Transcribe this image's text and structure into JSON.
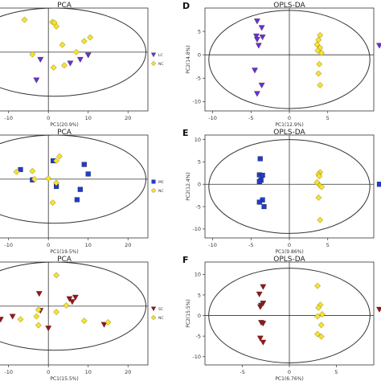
{
  "panels": [
    {
      "id": "A",
      "letter": "",
      "title": "PCA",
      "xlabel": "PC1(20.9%)",
      "ylabel": "",
      "xlim": [
        -17,
        25
      ],
      "ylim": [
        -8,
        6
      ],
      "xticks": [
        -10,
        0,
        10,
        20
      ],
      "yticks": [],
      "ellipse": {
        "cx": 1.5,
        "cy": 0,
        "rx": 23,
        "ry": 6
      },
      "legend": [
        {
          "label": "LC",
          "shape": "tri",
          "color": "#6a2fd6"
        },
        {
          "label": "NC",
          "shape": "dia",
          "color": "#f5e232"
        }
      ],
      "series": [
        {
          "name": "LC",
          "shape": "tri",
          "color": "#6a2fd6",
          "points": [
            [
              -16,
              2
            ],
            [
              -14,
              -2
            ],
            [
              -3,
              -3.8
            ],
            [
              5.5,
              -1.5
            ],
            [
              8,
              -1
            ],
            [
              10,
              -0.4
            ],
            [
              -2,
              -1
            ]
          ]
        },
        {
          "name": "NC",
          "shape": "dia",
          "color": "#f5e232",
          "points": [
            [
              -6,
              4.4
            ],
            [
              1,
              4.1
            ],
            [
              1.5,
              4
            ],
            [
              2,
              3.5
            ],
            [
              3.5,
              1
            ],
            [
              7,
              0
            ],
            [
              9,
              1.5
            ],
            [
              10.5,
              2
            ],
            [
              -4,
              -0.3
            ],
            [
              1.3,
              -2.1
            ],
            [
              4,
              -1.8
            ]
          ]
        }
      ]
    },
    {
      "id": "D",
      "letter": "D",
      "title": "OPLS-DA",
      "xlabel": "PC1(12.9%)",
      "ylabel": "PC2(14.8%)",
      "xlim": [
        -11,
        11
      ],
      "ylim": [
        -12,
        10
      ],
      "xticks": [
        -10,
        -5,
        0,
        5
      ],
      "yticks": [
        -10,
        -5,
        0,
        5
      ],
      "ellipse": {
        "cx": 0,
        "cy": -1,
        "rx": 10.5,
        "ry": 10.5
      },
      "legend": [],
      "series": [
        {
          "name": "LC",
          "shape": "tri",
          "color": "#6a2fd6",
          "points": [
            [
              -4.2,
              7.2
            ],
            [
              -3.6,
              5.8
            ],
            [
              -4.3,
              4
            ],
            [
              -3.5,
              3.8
            ],
            [
              -4.2,
              3.3
            ],
            [
              -4,
              2
            ],
            [
              -4.5,
              -3.3
            ],
            [
              -3.6,
              -6.5
            ],
            [
              -4.2,
              -8.3
            ]
          ]
        },
        {
          "name": "NC",
          "shape": "dia",
          "color": "#f5e232",
          "points": [
            [
              4,
              4.2
            ],
            [
              3.8,
              3.2
            ],
            [
              3.6,
              2.2
            ],
            [
              4,
              1.5
            ],
            [
              3.7,
              0.9
            ],
            [
              4.2,
              0.4
            ],
            [
              3.9,
              -2
            ],
            [
              3.8,
              -4
            ],
            [
              4,
              -6.5
            ]
          ]
        }
      ],
      "edge_markers": [
        {
          "y": 2,
          "shape": "tri",
          "color": "#6a2fd6"
        }
      ]
    },
    {
      "id": "B",
      "letter": "",
      "title": "PCA",
      "xlabel": "PC1(19.5%)",
      "ylabel": "",
      "xlim": [
        -17,
        25
      ],
      "ylim": [
        -8,
        6
      ],
      "xticks": [
        -10,
        0,
        10,
        20
      ],
      "yticks": [],
      "ellipse": {
        "cx": 1.5,
        "cy": 0,
        "rx": 23,
        "ry": 6
      },
      "legend": [
        {
          "label": "MC",
          "shape": "sq",
          "color": "#1f3bd1"
        },
        {
          "label": "NC",
          "shape": "dia",
          "color": "#f5e232"
        }
      ],
      "series": [
        {
          "name": "MC",
          "shape": "sq",
          "color": "#1f3bd1",
          "points": [
            [
              -7,
              1.3
            ],
            [
              -4,
              -0.1
            ],
            [
              1.2,
              2.5
            ],
            [
              2,
              -1
            ],
            [
              9,
              2
            ],
            [
              10,
              0.7
            ],
            [
              8,
              -1.4
            ],
            [
              7.2,
              -2.8
            ],
            [
              -14.5,
              -3.3
            ]
          ]
        },
        {
          "name": "NC",
          "shape": "dia",
          "color": "#f5e232",
          "points": [
            [
              -14,
              1
            ],
            [
              -8,
              1
            ],
            [
              -4,
              1.1
            ],
            [
              2,
              2.5
            ],
            [
              2.8,
              3.1
            ],
            [
              0,
              0.1
            ],
            [
              2,
              -0.5
            ],
            [
              1.1,
              -3.2
            ],
            [
              -3.5,
              0
            ]
          ]
        }
      ]
    },
    {
      "id": "E",
      "letter": "E",
      "title": "OPLS-DA",
      "xlabel": "PC1(9.86%)",
      "ylabel": "PC2(12.4%)",
      "xlim": [
        -11,
        11
      ],
      "ylim": [
        -12,
        11
      ],
      "xticks": [
        -10,
        -5,
        0,
        5
      ],
      "yticks": [
        -10,
        -5,
        0,
        5,
        10
      ],
      "ellipse": {
        "cx": 0,
        "cy": -0.5,
        "rx": 10.5,
        "ry": 10.5
      },
      "legend": [],
      "series": [
        {
          "name": "MC",
          "shape": "sq",
          "color": "#1f3bd1",
          "points": [
            [
              -3.8,
              5.7
            ],
            [
              -3.9,
              2.1
            ],
            [
              -3.5,
              2
            ],
            [
              -3.7,
              0.9
            ],
            [
              -3.9,
              0.6
            ],
            [
              -3.5,
              -3.5
            ],
            [
              -3.9,
              -4
            ],
            [
              -3.3,
              -5
            ]
          ]
        },
        {
          "name": "NC",
          "shape": "dia",
          "color": "#f5e232",
          "points": [
            [
              4,
              2.7
            ],
            [
              3.8,
              2.2
            ],
            [
              3.9,
              1.8
            ],
            [
              3.6,
              0.4
            ],
            [
              4,
              -0.3
            ],
            [
              4.2,
              -0.6
            ],
            [
              3.8,
              -3
            ],
            [
              4,
              -8
            ]
          ]
        }
      ],
      "edge_markers": [
        {
          "y": 0,
          "shape": "sq",
          "color": "#1f3bd1"
        }
      ]
    },
    {
      "id": "C",
      "letter": "",
      "title": "PCA",
      "xlabel": "PC1(15.5%)",
      "ylabel": "",
      "xlim": [
        -17,
        25
      ],
      "ylim": [
        -8,
        6
      ],
      "xticks": [
        -10,
        0,
        10,
        20
      ],
      "yticks": [],
      "ellipse": {
        "cx": 1.5,
        "cy": 0,
        "rx": 23,
        "ry": 6
      },
      "legend": [
        {
          "label": "SC",
          "shape": "tri",
          "color": "#9c1414"
        },
        {
          "label": "NC",
          "shape": "dia",
          "color": "#f5e232"
        }
      ],
      "series": [
        {
          "name": "SC",
          "shape": "tri",
          "color": "#9c1414",
          "points": [
            [
              -2.3,
              1.7
            ],
            [
              5.3,
              1
            ],
            [
              6,
              0.6
            ],
            [
              6.8,
              1.2
            ],
            [
              -2,
              -0.6
            ],
            [
              -12,
              -1.8
            ],
            [
              -9,
              -1.4
            ],
            [
              -17,
              -2.3
            ],
            [
              14,
              -2.5
            ],
            [
              0,
              -3
            ]
          ]
        },
        {
          "name": "NC",
          "shape": "dia",
          "color": "#f5e232",
          "points": [
            [
              2,
              4.2
            ],
            [
              -2.5,
              -0.5
            ],
            [
              2,
              -0.8
            ],
            [
              4.5,
              0.1
            ],
            [
              9,
              -2
            ],
            [
              15,
              -2.2
            ],
            [
              -2.5,
              -2.6
            ],
            [
              -3,
              -1.4
            ],
            [
              -7,
              -1.8
            ]
          ]
        }
      ]
    },
    {
      "id": "F",
      "letter": "F",
      "title": "OPLS-DA",
      "xlabel": "PC1(6.76%)",
      "ylabel": "PC2(15.5%)",
      "xlim": [
        -9,
        9
      ],
      "ylim": [
        -12,
        13
      ],
      "xticks": [
        -5,
        0,
        5
      ],
      "yticks": [
        -10,
        -5,
        0,
        5,
        10
      ],
      "ellipse": {
        "cx": 0,
        "cy": 0,
        "rx": 8.6,
        "ry": 11.5
      },
      "legend": [],
      "series": [
        {
          "name": "SC",
          "shape": "tri",
          "color": "#9c1414",
          "points": [
            [
              -2.8,
              7
            ],
            [
              -3.2,
              5.2
            ],
            [
              -2.8,
              3
            ],
            [
              -3,
              2.5
            ],
            [
              -3.1,
              2.1
            ],
            [
              -3,
              -1.7
            ],
            [
              -2.8,
              -1.9
            ],
            [
              -3.1,
              -5.5
            ],
            [
              -2.8,
              -6.5
            ]
          ]
        },
        {
          "name": "NC",
          "shape": "dia",
          "color": "#f5e232",
          "points": [
            [
              3,
              7.2
            ],
            [
              3.3,
              2.6
            ],
            [
              3.1,
              1.9
            ],
            [
              3.5,
              0.3
            ],
            [
              3,
              -0.2
            ],
            [
              3.4,
              -2.3
            ],
            [
              3,
              -4.5
            ],
            [
              3.4,
              -5.1
            ]
          ]
        }
      ],
      "edge_markers": [
        {
          "y": 1.5,
          "shape": "tri",
          "color": "#9c1414"
        }
      ]
    }
  ]
}
